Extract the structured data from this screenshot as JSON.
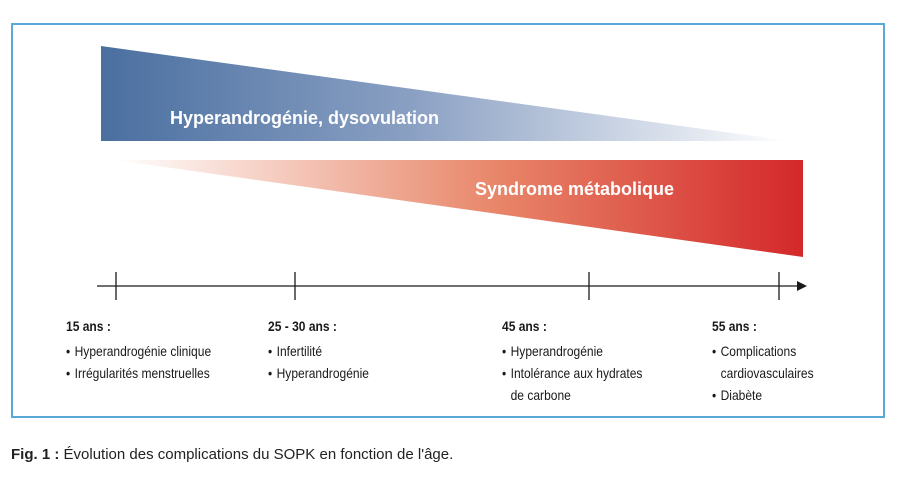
{
  "bands": {
    "upper": {
      "label": "Hyperandrogénie, dysovulation",
      "color_strong": "#4a6fa0",
      "color_fade": "#ffffff"
    },
    "lower": {
      "label": "Syndrome métabolique",
      "color_strong": "#d4282a",
      "color_fade": "#ffffff"
    }
  },
  "timeline": {
    "stages": [
      {
        "age": "15 ans :",
        "items": [
          [
            "Hyperandrogénie clinique"
          ],
          [
            "Irrégularités menstruelles"
          ]
        ]
      },
      {
        "age": "25 - 30 ans :",
        "items": [
          [
            "Infertilité"
          ],
          [
            "Hyperandrogénie"
          ]
        ]
      },
      {
        "age": "45 ans :",
        "items": [
          [
            "Hyperandrogénie"
          ],
          [
            "Intolérance aux hydrates",
            "de carbone"
          ]
        ]
      },
      {
        "age": "55 ans :",
        "items": [
          [
            "Complications",
            "cardiovasculaires"
          ],
          [
            "Diabète"
          ]
        ]
      }
    ]
  },
  "caption": {
    "prefix": "Fig. 1 :",
    "text": "Évolution des complications du SOPK en fonction de l'âge."
  },
  "colors": {
    "frame": "#5aa8d6",
    "axis": "#1a1a1a"
  }
}
